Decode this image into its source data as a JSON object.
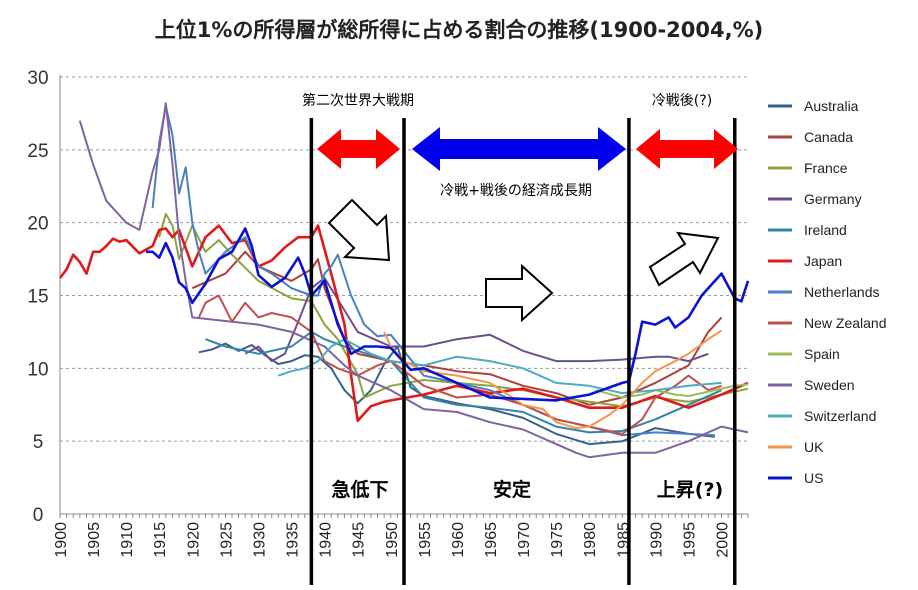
{
  "chart_data": {
    "type": "line",
    "title": "上位1%の所得層が総所得に占める割合の推移(1900-2004,%)",
    "xlabel": "",
    "ylabel": "",
    "xlim": [
      1900,
      2004
    ],
    "ylim": [
      0,
      30
    ],
    "y_ticks": [
      "0",
      "5",
      "10",
      "15",
      "20",
      "25",
      "30"
    ],
    "x_ticks": [
      "1900",
      "1905",
      "1910",
      "1915",
      "1920",
      "1925",
      "1930",
      "1935",
      "1940",
      "1945",
      "1950",
      "1955",
      "1960",
      "1965",
      "1970",
      "1975",
      "1980",
      "1985",
      "1990",
      "1995",
      "2000"
    ],
    "grid": "horizontal dashed",
    "legend_position": "right",
    "series": [
      {
        "name": "Australia",
        "color": "#3a5f8f",
        "x": [
          1921,
          1923,
          1925,
          1927,
          1929,
          1931,
          1933,
          1935,
          1937,
          1939,
          1941,
          1943,
          1945,
          1947,
          1949,
          1951,
          1953,
          1955,
          1960,
          1965,
          1970,
          1975,
          1980,
          1985,
          1990,
          1995,
          1999
        ],
        "y": [
          11.1,
          11.3,
          11.7,
          11.2,
          11.6,
          10.9,
          10.3,
          10.5,
          10.9,
          10.8,
          10.0,
          8.5,
          7.6,
          8.5,
          10.3,
          11.5,
          8.7,
          8.1,
          7.6,
          7.2,
          6.6,
          5.5,
          4.8,
          5.0,
          5.9,
          5.5,
          5.3
        ]
      },
      {
        "name": "Canada",
        "color": "#a9423c",
        "x": [
          1920,
          1925,
          1928,
          1930,
          1935,
          1938,
          1939,
          1940,
          1943,
          1945,
          1950,
          1955,
          1960,
          1965,
          1970,
          1975,
          1980,
          1985,
          1990,
          1995,
          1998,
          2000
        ],
        "y": [
          15.5,
          16.5,
          18.0,
          17.0,
          16.0,
          16.8,
          17.5,
          15.5,
          12.0,
          11.0,
          10.5,
          10.2,
          9.8,
          9.6,
          8.8,
          8.3,
          7.5,
          8.0,
          9.0,
          10.2,
          12.5,
          13.5
        ]
      },
      {
        "name": "France",
        "color": "#8aa43e",
        "x": [
          1915,
          1916,
          1917,
          1918,
          1920,
          1922,
          1924,
          1926,
          1930,
          1935,
          1938,
          1940,
          1942,
          1945,
          1946,
          1950,
          1955,
          1960,
          1965,
          1970,
          1975,
          1980,
          1985,
          1990,
          1995,
          2000,
          2004
        ],
        "y": [
          19.0,
          20.6,
          19.8,
          17.5,
          19.8,
          18.0,
          18.8,
          17.8,
          16.0,
          14.8,
          14.6,
          13.0,
          12.0,
          9.6,
          8.0,
          8.8,
          9.2,
          9.0,
          8.8,
          8.5,
          8.0,
          7.7,
          7.4,
          8.0,
          7.7,
          8.2,
          8.6
        ]
      },
      {
        "name": "Germany",
        "color": "#6c4f8c",
        "x": [
          1928,
          1930,
          1932,
          1934,
          1936,
          1938,
          1940,
          1945,
          1950,
          1955,
          1960,
          1965,
          1970,
          1975,
          1980,
          1985,
          1990,
          1992,
          1995,
          1998
        ],
        "y": [
          11.0,
          11.5,
          10.5,
          11.0,
          13.2,
          15.5,
          16.2,
          12.5,
          11.5,
          11.5,
          12.0,
          12.3,
          11.2,
          10.5,
          10.5,
          10.6,
          10.8,
          10.8,
          10.5,
          11.0
        ]
      },
      {
        "name": "Ireland",
        "color": "#3384a6",
        "x": [
          1922,
          1925,
          1930,
          1935,
          1938,
          1940,
          1943,
          1945,
          1950,
          1955,
          1960,
          1965,
          1970,
          1975,
          1980,
          1985,
          1990,
          1995,
          2000
        ],
        "y": [
          12.0,
          11.5,
          11.0,
          11.5,
          12.5,
          12.0,
          11.5,
          11.2,
          10.5,
          8.0,
          7.5,
          7.3,
          7.0,
          6.0,
          5.6,
          5.7,
          6.5,
          7.5,
          8.5
        ]
      },
      {
        "name": "Japan",
        "color": "#e1191b",
        "x": [
          1900,
          1901,
          1902,
          1903,
          1904,
          1905,
          1906,
          1907,
          1908,
          1909,
          1910,
          1912,
          1914,
          1915,
          1916,
          1917,
          1918,
          1920,
          1922,
          1924,
          1926,
          1928,
          1930,
          1932,
          1934,
          1936,
          1938,
          1939,
          1941,
          1943,
          1944,
          1945,
          1947,
          1949,
          1950,
          1955,
          1960,
          1965,
          1970,
          1975,
          1980,
          1985,
          1990,
          1995,
          2000,
          2004
        ],
        "y": [
          16.2,
          16.8,
          17.8,
          17.3,
          16.5,
          18.0,
          18.0,
          18.4,
          18.9,
          18.7,
          18.8,
          17.9,
          18.4,
          19.5,
          19.6,
          19.0,
          19.5,
          17.0,
          19.0,
          19.8,
          18.6,
          18.8,
          17.0,
          17.4,
          18.3,
          19.0,
          19.0,
          19.8,
          16.5,
          13.0,
          9.5,
          6.4,
          7.4,
          7.7,
          7.8,
          8.2,
          8.8,
          8.3,
          8.6,
          8.0,
          7.3,
          7.3,
          8.1,
          7.3,
          8.2,
          9.0
        ]
      },
      {
        "name": "Netherlands",
        "color": "#4a7fc0",
        "x": [
          1914,
          1915,
          1916,
          1917,
          1918,
          1919,
          1920,
          1921,
          1922,
          1925,
          1928,
          1930,
          1932,
          1935,
          1938,
          1939,
          1940,
          1941,
          1942,
          1944,
          1946,
          1948,
          1950,
          1955,
          1960,
          1965,
          1970,
          1975,
          1980,
          1985,
          1990,
          1995,
          1999
        ],
        "y": [
          21.0,
          25.5,
          28.0,
          26.0,
          22.0,
          23.8,
          20.0,
          18.0,
          16.5,
          18.0,
          19.0,
          17.0,
          16.5,
          15.5,
          15.0,
          15.0,
          16.5,
          17.0,
          17.8,
          15.0,
          13.0,
          12.2,
          12.3,
          9.5,
          9.0,
          8.5,
          7.5,
          6.5,
          6.0,
          5.4,
          5.6,
          5.5,
          5.4
        ]
      },
      {
        "name": "New Zealand",
        "color": "#c0504d",
        "x": [
          1921,
          1922,
          1924,
          1926,
          1928,
          1930,
          1932,
          1935,
          1938,
          1940,
          1942,
          1945,
          1948,
          1950,
          1953,
          1955,
          1960,
          1965,
          1970,
          1975,
          1980,
          1985,
          1988,
          1990,
          1993,
          1995,
          1998,
          2000
        ],
        "y": [
          13.5,
          14.5,
          15.0,
          13.2,
          14.5,
          13.5,
          13.8,
          13.5,
          12.5,
          10.5,
          10.0,
          9.5,
          10.2,
          10.5,
          9.5,
          8.8,
          8.0,
          8.2,
          7.5,
          6.5,
          6.0,
          5.5,
          6.5,
          8.0,
          8.8,
          9.5,
          8.5,
          8.8
        ]
      },
      {
        "name": "Spain",
        "color": "#9bbb59",
        "x": [
          1981,
          1985,
          1988,
          1990,
          1993,
          1995,
          1998,
          2000,
          2002,
          2004
        ],
        "y": [
          8.5,
          8.0,
          8.2,
          8.5,
          8.2,
          8.1,
          8.4,
          8.6,
          8.8,
          8.9
        ]
      },
      {
        "name": "Sweden",
        "color": "#8064a2",
        "x": [
          1903,
          1905,
          1907,
          1910,
          1912,
          1914,
          1915,
          1916,
          1917,
          1918,
          1919,
          1920,
          1930,
          1935,
          1940,
          1943,
          1945,
          1950,
          1955,
          1960,
          1965,
          1970,
          1975,
          1978,
          1980,
          1985,
          1990,
          1995,
          2000,
          2004
        ],
        "y": [
          27.0,
          24.0,
          21.5,
          20.0,
          19.5,
          23.5,
          25.0,
          28.2,
          24.0,
          19.0,
          16.0,
          13.5,
          13.0,
          12.5,
          11.5,
          10.2,
          9.5,
          8.5,
          7.2,
          7.0,
          6.3,
          5.8,
          4.8,
          4.2,
          3.9,
          4.2,
          4.2,
          5.0,
          6.0,
          5.6
        ]
      },
      {
        "name": "Switzerland",
        "color": "#4bacc6",
        "x": [
          1933,
          1935,
          1937,
          1939,
          1941,
          1943,
          1945,
          1947,
          1950,
          1955,
          1960,
          1965,
          1970,
          1975,
          1980,
          1985,
          1990,
          1995,
          2000
        ],
        "y": [
          9.5,
          9.8,
          10.0,
          10.5,
          11.5,
          12.0,
          11.5,
          11.0,
          10.5,
          10.2,
          10.8,
          10.5,
          10.0,
          9.0,
          8.8,
          8.3,
          8.5,
          8.8,
          9.0
        ]
      },
      {
        "name": "UK",
        "color": "#f79646",
        "x": [
          1949,
          1950,
          1951,
          1952,
          1955,
          1960,
          1965,
          1970,
          1973,
          1975,
          1978,
          1980,
          1983,
          1985,
          1988,
          1990,
          1993,
          1995,
          1998,
          2000
        ],
        "y": [
          12.5,
          11.5,
          11.0,
          10.5,
          9.8,
          9.5,
          9.0,
          7.5,
          7.2,
          6.3,
          5.9,
          6.0,
          6.8,
          7.5,
          9.0,
          9.8,
          10.5,
          11.0,
          12.0,
          12.6
        ]
      },
      {
        "name": "US",
        "color": "#0b13d2",
        "x": [
          1913,
          1914,
          1915,
          1916,
          1917,
          1918,
          1919,
          1920,
          1922,
          1924,
          1926,
          1928,
          1929,
          1930,
          1932,
          1934,
          1936,
          1937,
          1938,
          1939,
          1940,
          1942,
          1944,
          1946,
          1948,
          1950,
          1953,
          1955,
          1960,
          1965,
          1970,
          1975,
          1980,
          1985,
          1986,
          1987,
          1988,
          1990,
          1992,
          1993,
          1995,
          1997,
          1999,
          2000,
          2002,
          2003,
          2004
        ],
        "y": [
          18.0,
          18.0,
          17.6,
          18.6,
          17.6,
          15.9,
          15.5,
          14.5,
          15.8,
          17.5,
          18.0,
          19.6,
          18.4,
          16.4,
          15.6,
          16.2,
          17.6,
          16.5,
          15.0,
          15.5,
          16.0,
          13.0,
          11.0,
          11.5,
          11.5,
          11.4,
          9.9,
          10.0,
          9.0,
          8.0,
          7.9,
          7.8,
          8.2,
          9.0,
          9.1,
          11.0,
          13.2,
          13.0,
          13.5,
          12.8,
          13.5,
          15.0,
          16.0,
          16.5,
          14.8,
          14.6,
          16.0
        ]
      }
    ],
    "annotations": {
      "period_ww2": "第二次世界大戦期",
      "period_postwar": "冷戦+戦後の経済成長期",
      "period_postcoldwar": "冷戦後(?)",
      "phase_decline": "急低下",
      "phase_stable": "安定",
      "phase_rise": "上昇(?)",
      "divider_years": [
        1938,
        1952,
        1986,
        2002
      ]
    }
  }
}
